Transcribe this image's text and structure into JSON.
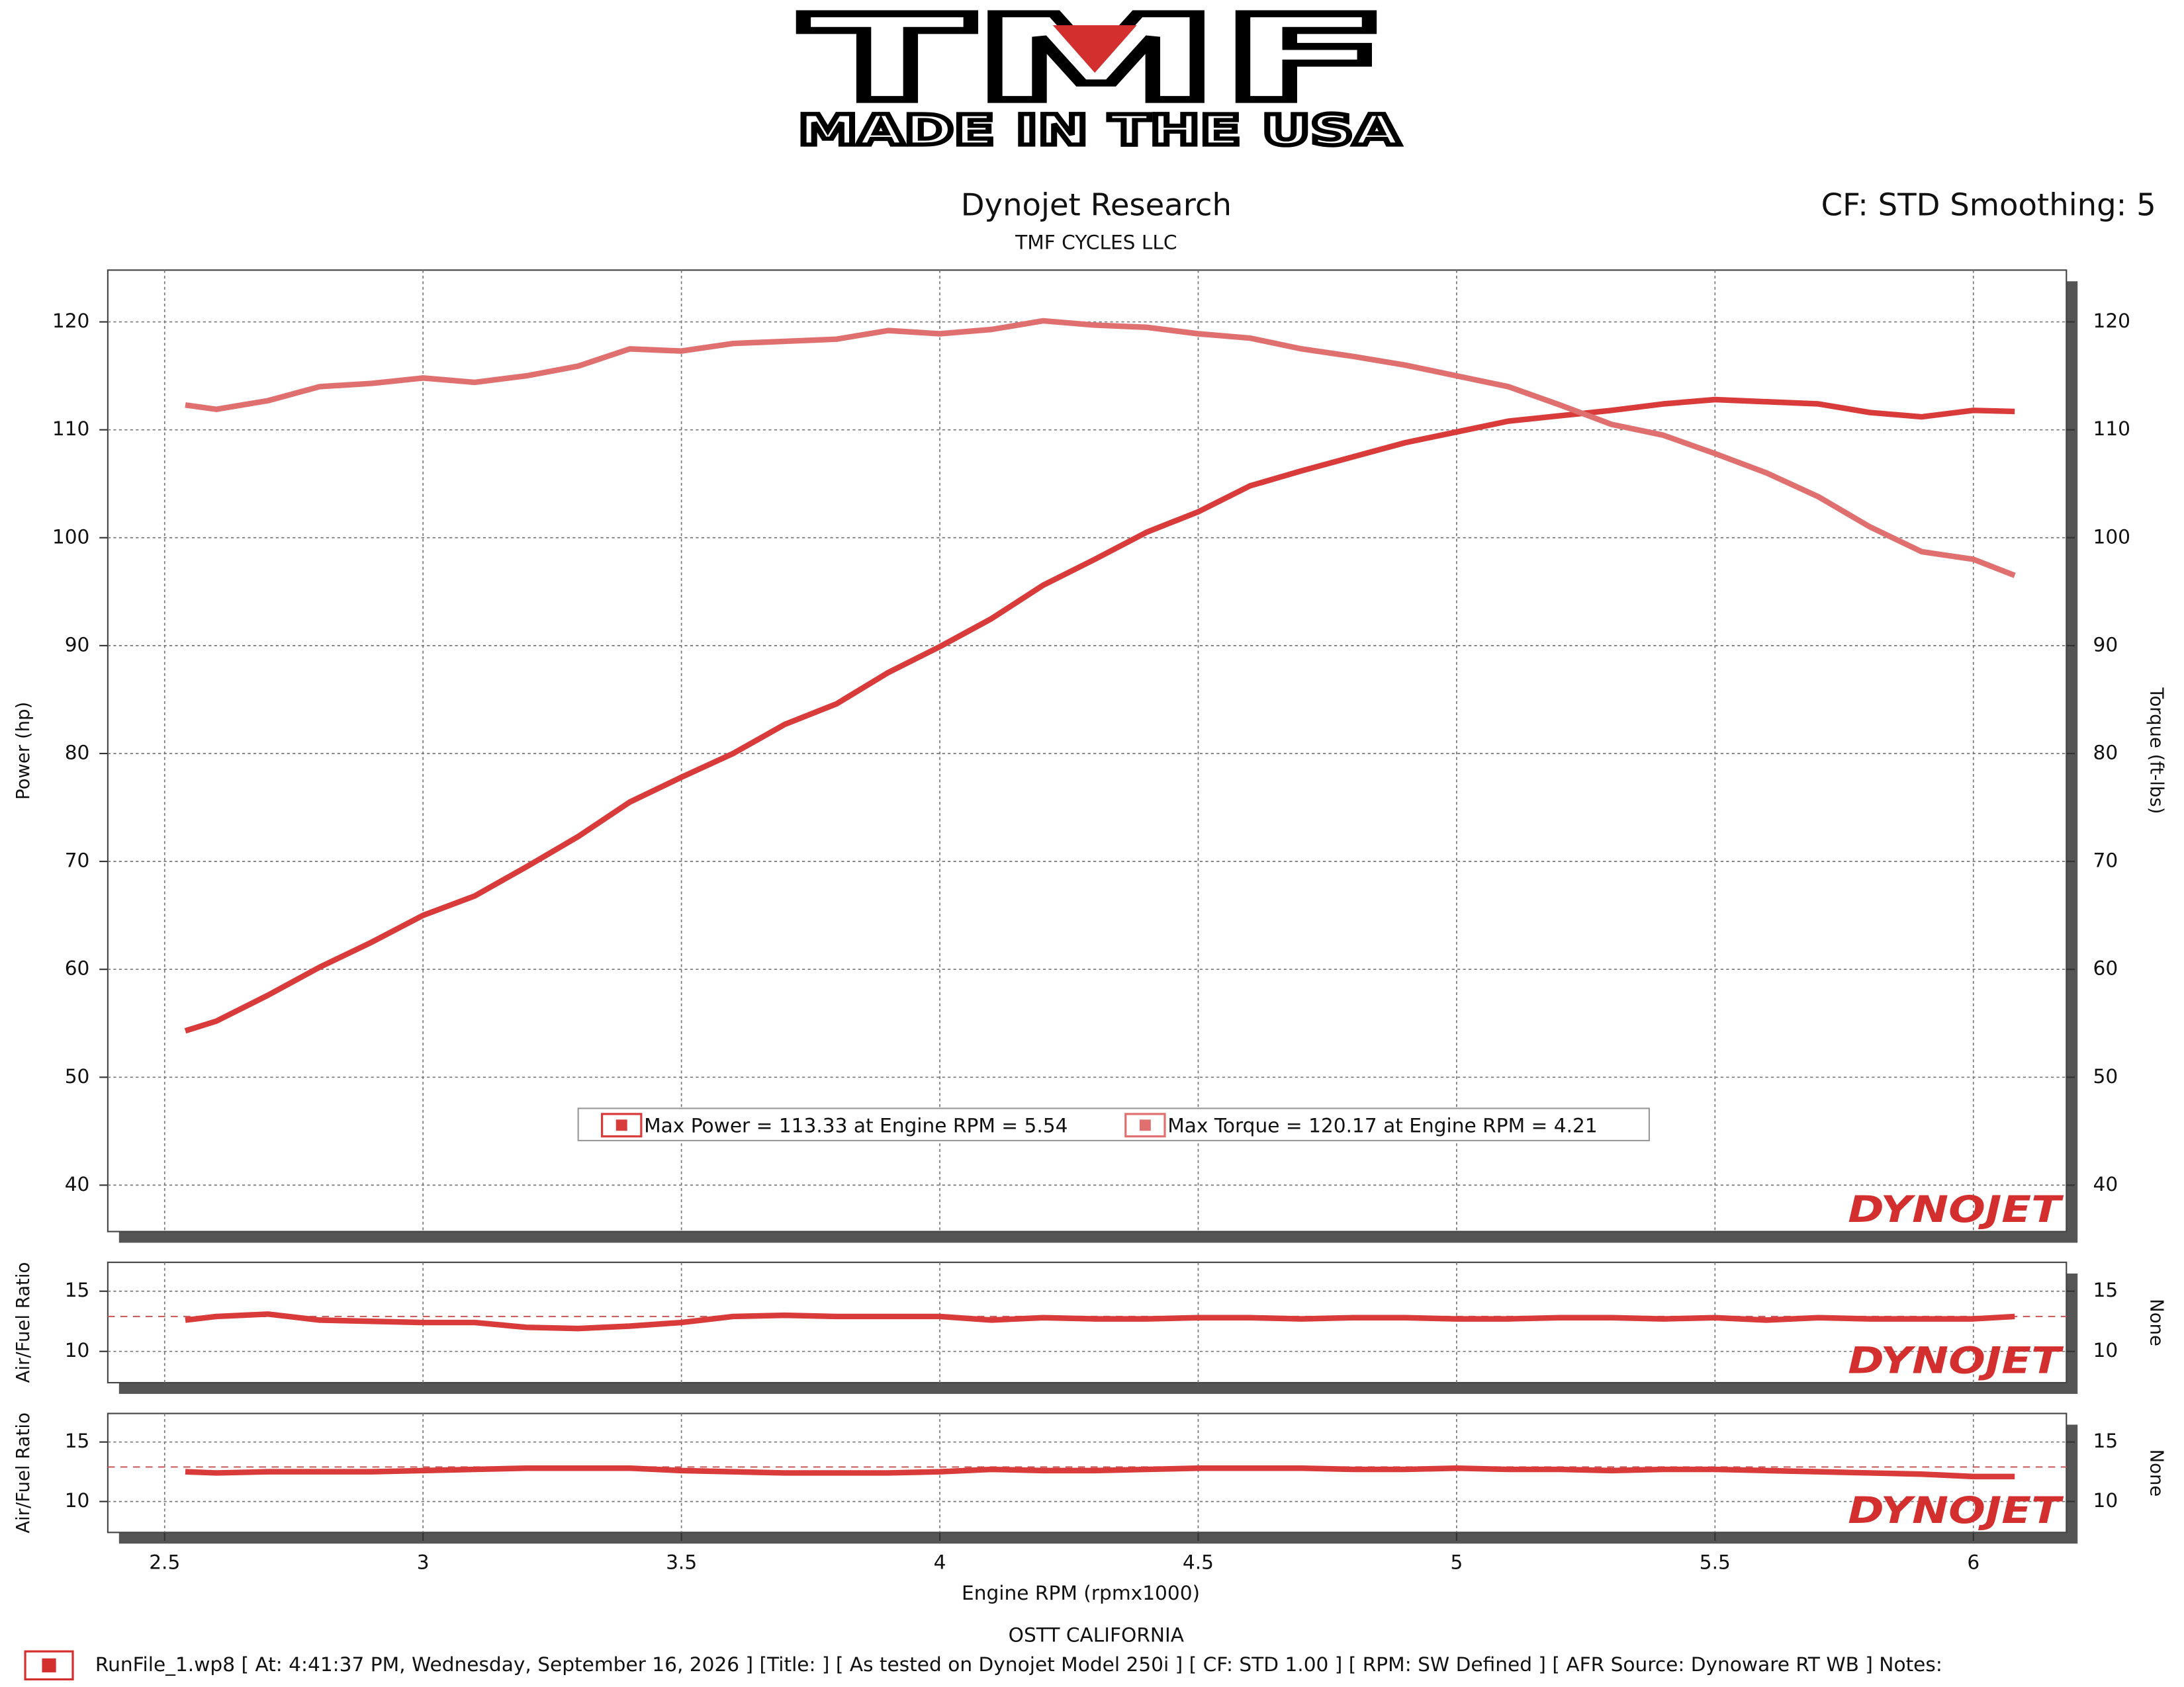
{
  "header": {
    "logo": "TMF",
    "tagline": "MADE IN THE USA"
  },
  "chart_data": [
    {
      "type": "line",
      "title": "Dynojet Research",
      "subtitle": "TMF CYCLES LLC",
      "annotation": "CF: STD Smoothing: 5",
      "watermark": "DYNOJET",
      "x_label": "Engine RPM (rpmx1000)",
      "y_label": "Power (hp)",
      "y2_label": "Torque (ft-lbs)",
      "x": [
        2.54,
        2.6,
        2.7,
        2.8,
        2.9,
        3.0,
        3.1,
        3.2,
        3.3,
        3.4,
        3.5,
        3.6,
        3.7,
        3.8,
        3.9,
        4.0,
        4.1,
        4.2,
        4.3,
        4.4,
        4.5,
        4.6,
        4.7,
        4.8,
        4.9,
        5.0,
        5.1,
        5.2,
        5.3,
        5.4,
        5.5,
        5.6,
        5.7,
        5.8,
        5.9,
        6.0,
        6.08
      ],
      "xlim": [
        2.39,
        6.18
      ],
      "xticks": [
        2.5,
        3.0,
        3.5,
        4.0,
        4.5,
        5.0,
        5.5,
        6.0
      ],
      "ylim": [
        35.7,
        124.8
      ],
      "yticks": [
        40,
        50,
        60,
        70,
        80,
        90,
        100,
        110,
        120
      ],
      "y2lim": [
        35.7,
        124.8
      ],
      "y2ticks": [
        40,
        50,
        60,
        70,
        80,
        90,
        100,
        110,
        120
      ],
      "grid": true,
      "series": [
        {
          "name": "Max Power = 113.33 at Engine RPM = 5.54",
          "color": "#d93a3a",
          "values": [
            54.3,
            55.2,
            57.6,
            60.2,
            62.5,
            65.0,
            66.8,
            69.5,
            72.3,
            75.5,
            77.8,
            80.0,
            82.7,
            84.6,
            87.5,
            89.9,
            92.5,
            95.6,
            98.0,
            100.5,
            102.4,
            104.8,
            106.2,
            107.5,
            108.8,
            109.8,
            110.8,
            111.3,
            111.8,
            112.4,
            112.8,
            112.6,
            112.4,
            111.6,
            111.2,
            111.8,
            111.7
          ]
        },
        {
          "name": "Max Torque = 120.17 at Engine RPM = 4.21",
          "color": "#e07070",
          "axis": "y2",
          "values": [
            112.3,
            111.9,
            112.7,
            114.0,
            114.3,
            114.8,
            114.4,
            115.0,
            115.9,
            117.5,
            117.3,
            118.0,
            118.2,
            118.4,
            119.2,
            118.9,
            119.3,
            120.1,
            119.7,
            119.5,
            118.9,
            118.5,
            117.5,
            116.8,
            116.0,
            115.0,
            114.0,
            112.3,
            110.5,
            109.5,
            107.8,
            106.0,
            103.8,
            101.0,
            98.7,
            98.0,
            96.5
          ]
        }
      ]
    },
    {
      "type": "line",
      "watermark": "DYNOJET",
      "y_label": "Air/Fuel Ratio",
      "y2_label": "None",
      "ylim": [
        7.4,
        17.4
      ],
      "yticks": [
        10,
        15
      ],
      "y2lim": [
        7.4,
        17.4
      ],
      "y2ticks": [
        10,
        15
      ],
      "grid": true,
      "reference_line": 12.9,
      "series": [
        {
          "color": "#d93a3a",
          "values": [
            12.6,
            12.9,
            13.1,
            12.6,
            12.5,
            12.4,
            12.4,
            12.0,
            11.9,
            12.1,
            12.4,
            12.9,
            13.0,
            12.9,
            12.9,
            12.9,
            12.6,
            12.8,
            12.7,
            12.7,
            12.8,
            12.8,
            12.7,
            12.8,
            12.8,
            12.7,
            12.7,
            12.8,
            12.8,
            12.7,
            12.8,
            12.6,
            12.8,
            12.7,
            12.7,
            12.7,
            12.9
          ]
        }
      ]
    },
    {
      "type": "line",
      "watermark": "DYNOJET",
      "y_label": "Air/Fuel Ratio",
      "y2_label": "None",
      "ylim": [
        7.4,
        17.4
      ],
      "yticks": [
        10,
        15
      ],
      "y2lim": [
        7.4,
        17.4
      ],
      "y2ticks": [
        10,
        15
      ],
      "grid": true,
      "reference_line": 12.9,
      "series": [
        {
          "color": "#d93a3a",
          "values": [
            12.5,
            12.4,
            12.5,
            12.5,
            12.5,
            12.6,
            12.7,
            12.8,
            12.8,
            12.8,
            12.6,
            12.5,
            12.4,
            12.4,
            12.4,
            12.5,
            12.7,
            12.6,
            12.6,
            12.7,
            12.8,
            12.8,
            12.8,
            12.7,
            12.7,
            12.8,
            12.7,
            12.7,
            12.6,
            12.7,
            12.7,
            12.6,
            12.5,
            12.4,
            12.3,
            12.1,
            12.1
          ]
        }
      ]
    }
  ],
  "footer": {
    "location": "OSTT CALIFORNIA",
    "run_info": "RunFile_1.wp8 [ At: 4:41:37 PM, Wednesday, September 16, 2026 ] [Title: ]  [ As tested on Dynojet Model 250i ] [ CF: STD 1.00 ] [ RPM: SW Defined ] [ AFR Source: Dynoware RT WB ] Notes:"
  }
}
